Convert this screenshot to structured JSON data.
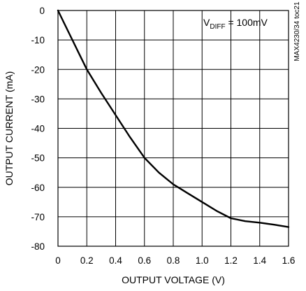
{
  "chart_data": {
    "type": "line",
    "title": "",
    "xlabel": "OUTPUT VOLTAGE (V)",
    "ylabel": "OUTPUT CURRENT (mA)",
    "xlim": [
      0,
      1.6
    ],
    "ylim": [
      -80,
      0
    ],
    "x_ticks": [
      0,
      0.2,
      0.4,
      0.6,
      0.8,
      1.0,
      1.2,
      1.4,
      1.6
    ],
    "x_tick_labels": [
      "0",
      "0.2",
      "0.4",
      "0.6",
      "0.8",
      "1.0",
      "1.2",
      "1.4",
      "1.6"
    ],
    "y_ticks": [
      0,
      -10,
      -20,
      -30,
      -40,
      -50,
      -60,
      -70,
      -80
    ],
    "y_tick_labels": [
      "0",
      "-10",
      "-20",
      "-30",
      "-40",
      "-50",
      "-60",
      "-70",
      "-80"
    ],
    "grid": true,
    "series": [
      {
        "x": [
          0,
          0.05,
          0.1,
          0.15,
          0.2,
          0.3,
          0.4,
          0.5,
          0.6,
          0.7,
          0.8,
          0.9,
          1.0,
          1.1,
          1.2,
          1.3,
          1.4,
          1.5,
          1.6
        ],
        "y": [
          0,
          -5,
          -10,
          -15,
          -20,
          -28,
          -35.5,
          -43,
          -50,
          -55,
          -59,
          -62,
          -65,
          -68,
          -70.5,
          -71.5,
          -72,
          -72.7,
          -73.5
        ]
      }
    ],
    "annotation": {
      "main": "V",
      "subscript": "DIFF",
      "rest": " = 100mV"
    },
    "side_note": "MAX4230/34 toc21"
  }
}
